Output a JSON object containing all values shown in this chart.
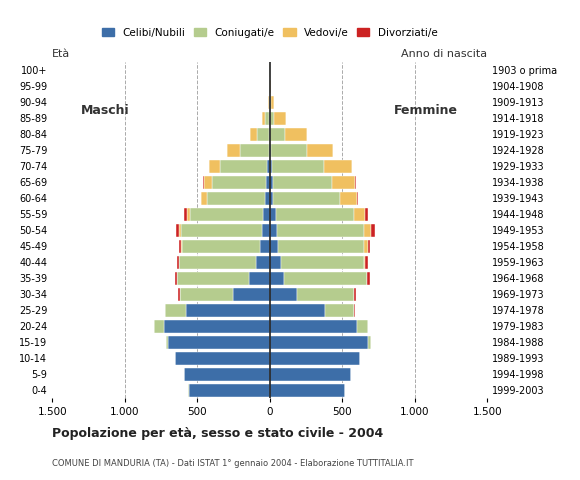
{
  "age_groups": [
    "0-4",
    "5-9",
    "10-14",
    "15-19",
    "20-24",
    "25-29",
    "30-34",
    "35-39",
    "40-44",
    "45-49",
    "50-54",
    "55-59",
    "60-64",
    "65-69",
    "70-74",
    "75-79",
    "80-84",
    "85-89",
    "90-94",
    "95-99",
    "100+"
  ],
  "birth_years": [
    "1999-2003",
    "1994-1998",
    "1989-1993",
    "1984-1988",
    "1979-1983",
    "1974-1978",
    "1969-1973",
    "1964-1968",
    "1959-1963",
    "1954-1958",
    "1949-1953",
    "1944-1948",
    "1939-1943",
    "1934-1938",
    "1929-1933",
    "1924-1928",
    "1919-1923",
    "1914-1918",
    "1909-1913",
    "1904-1908",
    "1903 o prima"
  ],
  "colors": {
    "celibi": "#3d6ea8",
    "coniugati": "#b5cc8e",
    "vedovi": "#f0c060",
    "divorziati": "#cc2222"
  },
  "males": {
    "celibi": [
      560,
      590,
      650,
      700,
      730,
      580,
      250,
      140,
      95,
      65,
      55,
      48,
      32,
      25,
      20,
      8,
      5,
      5,
      3,
      1,
      1
    ],
    "coniugati": [
      1,
      2,
      5,
      12,
      65,
      140,
      370,
      500,
      530,
      540,
      560,
      500,
      400,
      370,
      320,
      200,
      80,
      25,
      5,
      2,
      1
    ],
    "vedovi": [
      0,
      0,
      0,
      0,
      0,
      1,
      1,
      1,
      2,
      5,
      12,
      25,
      40,
      60,
      80,
      85,
      50,
      20,
      5,
      1,
      0
    ],
    "divorziati": [
      0,
      0,
      0,
      0,
      0,
      2,
      10,
      15,
      15,
      18,
      20,
      15,
      5,
      2,
      1,
      0,
      0,
      0,
      0,
      0,
      0
    ]
  },
  "females": {
    "celibi": [
      520,
      560,
      620,
      680,
      600,
      380,
      190,
      100,
      80,
      60,
      50,
      40,
      25,
      20,
      15,
      8,
      5,
      3,
      2,
      1,
      1
    ],
    "coniugati": [
      1,
      2,
      5,
      20,
      80,
      200,
      390,
      570,
      570,
      590,
      600,
      540,
      460,
      410,
      360,
      250,
      100,
      30,
      5,
      2,
      0
    ],
    "vedovi": [
      0,
      0,
      0,
      0,
      0,
      1,
      2,
      4,
      10,
      25,
      50,
      80,
      120,
      160,
      190,
      180,
      150,
      80,
      20,
      4,
      1
    ],
    "divorziati": [
      0,
      0,
      0,
      0,
      0,
      5,
      12,
      20,
      18,
      20,
      25,
      15,
      5,
      4,
      2,
      1,
      1,
      0,
      0,
      0,
      0
    ]
  },
  "title": "Popolazione per età, sesso e stato civile - 2004",
  "subtitle": "COMUNE DI MANDURIA (TA) - Dati ISTAT 1° gennaio 2004 - Elaborazione TUTTITALIA.IT",
  "xlabel_left": "Maschi",
  "xlabel_right": "Femmine",
  "ylabel_left": "Età",
  "ylabel_right": "Anno di nascita",
  "xlim": 1500,
  "legend_labels": [
    "Celibi/Nubili",
    "Coniugati/e",
    "Vedovi/e",
    "Divorziati/e"
  ],
  "background_color": "#ffffff",
  "grid_color": "#aaaaaa"
}
